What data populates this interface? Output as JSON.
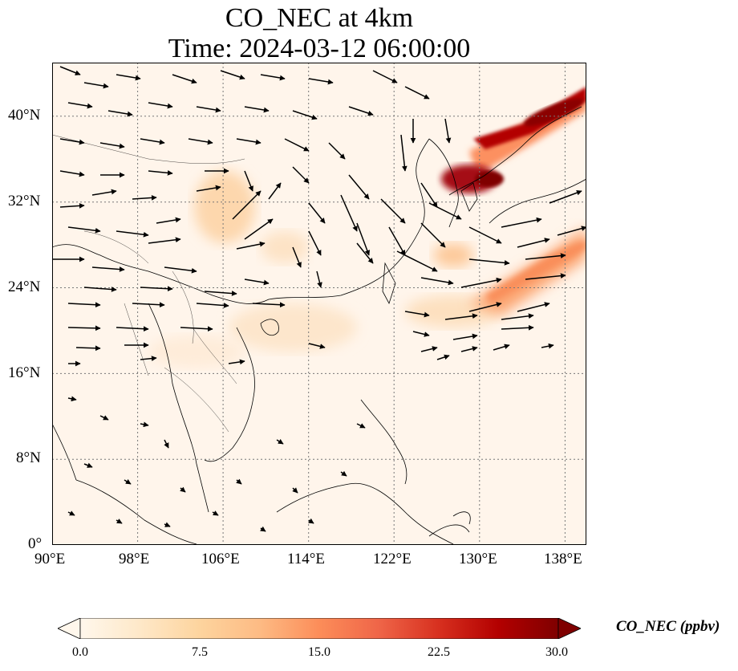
{
  "title": {
    "line1": "CO_NEC at 4km",
    "line2": "Time: 2024-03-12 06:00:00"
  },
  "map": {
    "lon_range": [
      90,
      140
    ],
    "lat_range": [
      0,
      45
    ],
    "lon_ticks": [
      "90°E",
      "98°E",
      "106°E",
      "114°E",
      "122°E",
      "130°E",
      "138°E"
    ],
    "lat_ticks": [
      "0°",
      "8°N",
      "16°N",
      "24°N",
      "32°N",
      "40°N"
    ],
    "gridlines": true,
    "background_color": "#fff5eb"
  },
  "colorbar": {
    "label": "CO_NEC (ppbv)",
    "ticks": [
      "0.0",
      "7.5",
      "15.0",
      "22.5",
      "30.0"
    ],
    "range": [
      0,
      30
    ],
    "colormap": "OrRd",
    "colors": [
      "#fff7ec",
      "#fee8c8",
      "#fdd49e",
      "#fdbb84",
      "#fc8d59",
      "#ef6548",
      "#d7301f",
      "#b30000",
      "#7f0000"
    ]
  }
}
